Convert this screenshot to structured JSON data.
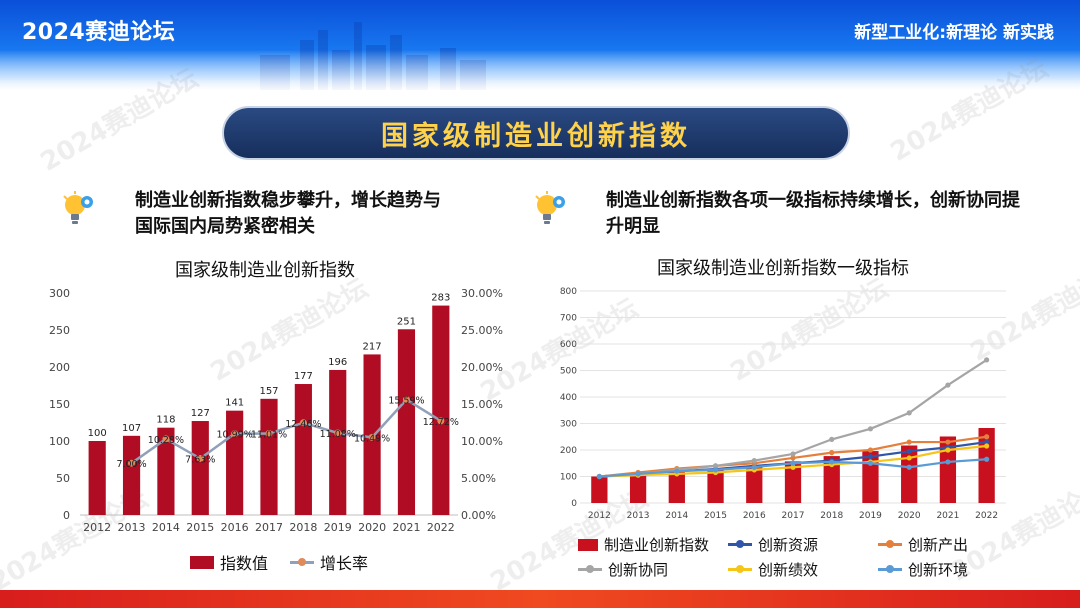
{
  "header": {
    "forum_title": "2024赛迪论坛",
    "slogan": "新型工业化:新理论 新实践"
  },
  "main_title": "国家级制造业创新指数",
  "left": {
    "heading": "制造业创新指数稳步攀升，增长趋势与国际国内局势紧密相关",
    "icon": "lightbulb-gear-icon"
  },
  "right": {
    "heading": "制造业创新指数各项一级指标持续增长，创新协同提升明显",
    "icon": "lightbulb-gear-icon"
  },
  "watermark": "2024赛迪论坛",
  "colors": {
    "bar": "#b00d24",
    "growth_line": "#8fa0b8",
    "growth_marker": "#e08a5a",
    "title_gold": "#ffd24a",
    "pill_navy": "#1c3668"
  },
  "chart_data": [
    {
      "type": "bar",
      "title": "国家级制造业创新指数",
      "categories": [
        "2012",
        "2013",
        "2014",
        "2015",
        "2016",
        "2017",
        "2018",
        "2019",
        "2020",
        "2021",
        "2022"
      ],
      "series": [
        {
          "name": "指数值",
          "type": "bar",
          "axis": "left",
          "values": [
            100,
            107,
            118,
            127,
            141,
            157,
            177,
            196,
            217,
            251,
            283
          ]
        },
        {
          "name": "增长率",
          "type": "line",
          "axis": "right",
          "values": [
            null,
            7.0,
            10.28,
            7.63,
            10.99,
            11.01,
            12.46,
            11.08,
            10.49,
            15.59,
            12.72
          ],
          "labels": [
            "",
            "7.00%",
            "10.28%",
            "7.63%",
            "10.99%",
            "11.01%",
            "12.46%",
            "11.08%",
            "10.49%",
            "15.59%",
            "12.72%"
          ]
        }
      ],
      "ylim_left": [
        0,
        300
      ],
      "yticks_left": [
        "0",
        "50",
        "100",
        "150",
        "200",
        "250",
        "300"
      ],
      "ylim_right": [
        0,
        30
      ],
      "yticks_right": [
        "0.00%",
        "5.00%",
        "10.00%",
        "15.00%",
        "20.00%",
        "25.00%",
        "30.00%"
      ],
      "legend": [
        "指数值",
        "增长率"
      ],
      "legend_position": "bottom"
    },
    {
      "type": "line",
      "title": "国家级制造业创新指数一级指标",
      "categories": [
        "2012",
        "2013",
        "2014",
        "2015",
        "2016",
        "2017",
        "2018",
        "2019",
        "2020",
        "2021",
        "2022"
      ],
      "series": [
        {
          "name": "制造业创新指数",
          "type": "bar",
          "color": "#c8101e",
          "values": [
            100,
            107,
            118,
            127,
            141,
            157,
            177,
            196,
            217,
            251,
            283
          ]
        },
        {
          "name": "创新资源",
          "color": "#2f56a8",
          "values": [
            100,
            110,
            120,
            128,
            140,
            150,
            160,
            175,
            195,
            210,
            230
          ]
        },
        {
          "name": "创新产出",
          "color": "#e4803b",
          "values": [
            100,
            115,
            130,
            140,
            150,
            170,
            190,
            200,
            230,
            230,
            250
          ]
        },
        {
          "name": "创新协同",
          "color": "#a5a5a5",
          "values": [
            100,
            110,
            125,
            140,
            160,
            185,
            240,
            280,
            340,
            445,
            540
          ]
        },
        {
          "name": "创新绩效",
          "color": "#f5c518",
          "values": [
            100,
            105,
            110,
            115,
            125,
            135,
            145,
            155,
            170,
            200,
            215
          ]
        },
        {
          "name": "创新环境",
          "color": "#5b9bd5",
          "values": [
            100,
            110,
            120,
            125,
            135,
            150,
            155,
            150,
            135,
            155,
            165
          ]
        }
      ],
      "ylim": [
        0,
        800
      ],
      "yticks": [
        "0",
        "100",
        "200",
        "300",
        "400",
        "500",
        "600",
        "700",
        "800"
      ],
      "legend_position": "bottom",
      "grid": true
    }
  ]
}
